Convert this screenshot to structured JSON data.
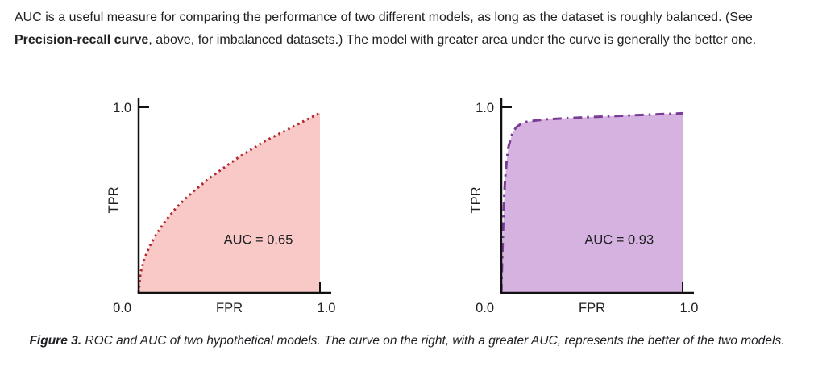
{
  "intro": {
    "line1": "AUC is a useful measure for comparing the performance of two different models, as long as the dataset is roughly balanced. (See",
    "bold": "Precision-recall curve",
    "rest": ", above, for imbalanced datasets.) The model with greater area under the curve is generally the better one."
  },
  "caption": {
    "label": "Figure 3.",
    "text": " ROC and AUC of two hypothetical models. The curve on the right, with a greater AUC, represents the better of the two models."
  },
  "chart_data": [
    {
      "type": "area",
      "name": "roc-curve-left",
      "title": "",
      "xlabel": "FPR",
      "ylabel": "TPR",
      "x_ticks": [
        "0.0",
        "1.0"
      ],
      "y_ticks": [
        "1.0"
      ],
      "xlim": [
        0,
        1
      ],
      "ylim": [
        0,
        1
      ],
      "annotation": "AUC = 0.65",
      "annotation_pos": {
        "x": 0.66,
        "y": 0.29
      },
      "auc": 0.65,
      "line_style": "dotted",
      "dash": "2.5 4.2",
      "line_color": "#b3282f",
      "fill_color": "#f8c9c6",
      "points": [
        [
          0,
          0
        ],
        [
          0.01,
          0.106
        ],
        [
          0.03,
          0.18
        ],
        [
          0.06,
          0.25
        ],
        [
          0.1,
          0.32
        ],
        [
          0.15,
          0.39
        ],
        [
          0.2,
          0.45
        ],
        [
          0.25,
          0.5
        ],
        [
          0.3,
          0.545
        ],
        [
          0.35,
          0.586
        ],
        [
          0.4,
          0.625
        ],
        [
          0.45,
          0.66
        ],
        [
          0.5,
          0.695
        ],
        [
          0.55,
          0.73
        ],
        [
          0.6,
          0.76
        ],
        [
          0.65,
          0.79
        ],
        [
          0.7,
          0.82
        ],
        [
          0.75,
          0.845
        ],
        [
          0.8,
          0.87
        ],
        [
          0.85,
          0.895
        ],
        [
          0.9,
          0.92
        ],
        [
          0.95,
          0.945
        ],
        [
          1,
          0.97
        ]
      ]
    },
    {
      "type": "area",
      "name": "roc-curve-right",
      "title": "",
      "xlabel": "FPR",
      "ylabel": "TPR",
      "x_ticks": [
        "0.0",
        "1.0"
      ],
      "y_ticks": [
        "1.0"
      ],
      "xlim": [
        0,
        1
      ],
      "ylim": [
        0,
        1
      ],
      "annotation": "AUC = 0.93",
      "annotation_pos": {
        "x": 0.65,
        "y": 0.29
      },
      "auc": 0.93,
      "line_style": "dashdot",
      "dash": "11 6 2.5 6",
      "line_color": "#7a3d96",
      "fill_color": "#d6b2e1",
      "points": [
        [
          0,
          0
        ],
        [
          0.005,
          0.18
        ],
        [
          0.01,
          0.35
        ],
        [
          0.015,
          0.5
        ],
        [
          0.02,
          0.6
        ],
        [
          0.03,
          0.72
        ],
        [
          0.04,
          0.79
        ],
        [
          0.06,
          0.855
        ],
        [
          0.08,
          0.89
        ],
        [
          0.1,
          0.905
        ],
        [
          0.13,
          0.92
        ],
        [
          0.18,
          0.928
        ],
        [
          0.25,
          0.935
        ],
        [
          0.35,
          0.941
        ],
        [
          0.5,
          0.948
        ],
        [
          0.65,
          0.954
        ],
        [
          0.8,
          0.96
        ],
        [
          0.9,
          0.964
        ],
        [
          1,
          0.968
        ]
      ]
    }
  ]
}
